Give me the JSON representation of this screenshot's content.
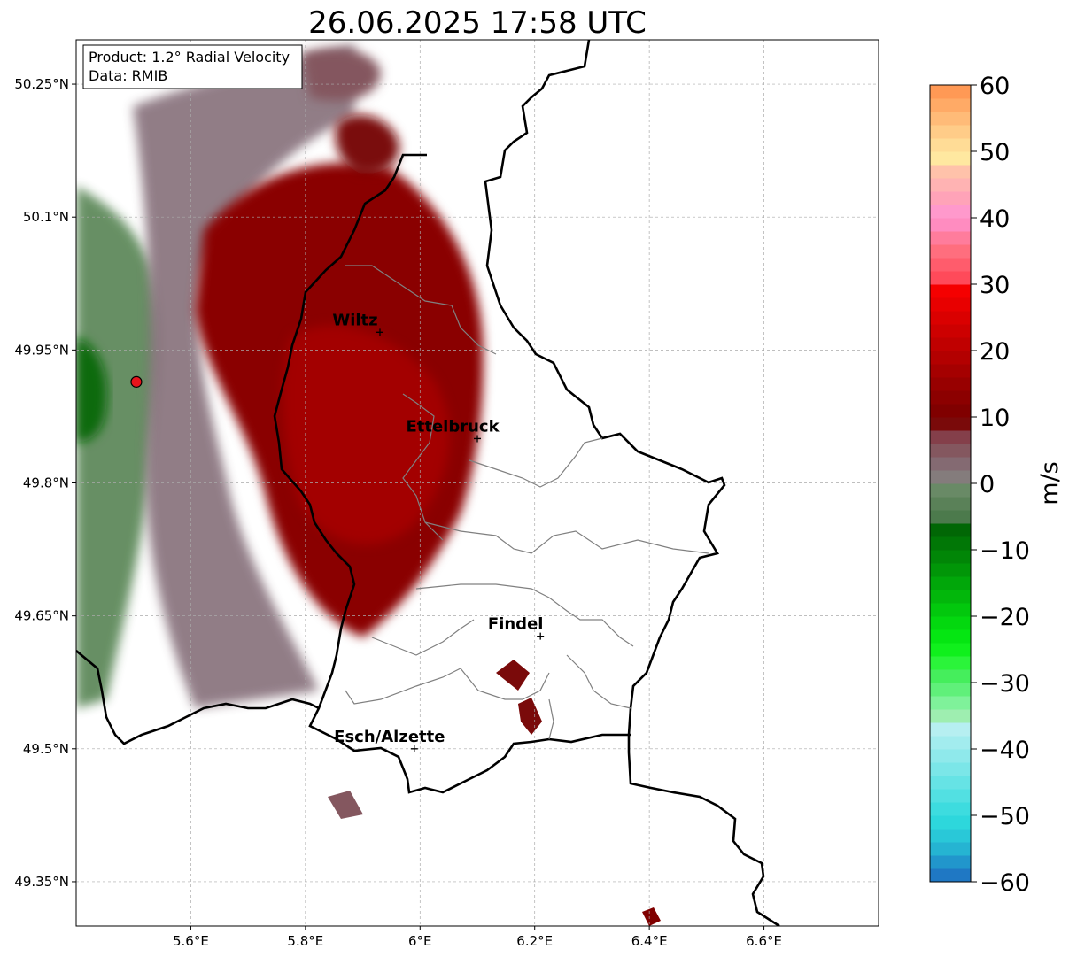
{
  "title": "26.06.2025 17:58 UTC",
  "info_box": {
    "product": "Product: 1.2° Radial Velocity",
    "data": "Data: RMIB"
  },
  "map": {
    "lon_range": [
      5.4,
      6.8
    ],
    "lat_range": [
      49.3,
      50.3
    ],
    "x_ticks": [
      {
        "value": 5.6,
        "label": "5.6°E"
      },
      {
        "value": 5.8,
        "label": "5.8°E"
      },
      {
        "value": 6.0,
        "label": "6°E"
      },
      {
        "value": 6.2,
        "label": "6.2°E"
      },
      {
        "value": 6.4,
        "label": "6.4°E"
      },
      {
        "value": 6.6,
        "label": "6.6°E"
      }
    ],
    "y_ticks": [
      {
        "value": 50.25,
        "label": "50.25°N"
      },
      {
        "value": 50.1,
        "label": "50.1°N"
      },
      {
        "value": 49.95,
        "label": "49.95°N"
      },
      {
        "value": 49.8,
        "label": "49.8°N"
      },
      {
        "value": 49.65,
        "label": "49.65°N"
      },
      {
        "value": 49.5,
        "label": "49.5°N"
      },
      {
        "value": 49.35,
        "label": "49.35°N"
      }
    ],
    "grid": true,
    "radar_site": {
      "lon": 5.505,
      "lat": 49.914,
      "color": "#e8141c"
    },
    "cities": [
      {
        "name": "Wiltz",
        "lon": 5.93,
        "lat": 49.97
      },
      {
        "name": "Ettelbruck",
        "lon": 6.1,
        "lat": 49.85
      },
      {
        "name": "Findel",
        "lon": 6.21,
        "lat": 49.627
      },
      {
        "name": "Esch/Alzette",
        "lon": 5.99,
        "lat": 49.5
      }
    ]
  },
  "colorbar": {
    "label": "m/s",
    "range": [
      -60,
      60
    ],
    "ticks": [
      {
        "value": 60,
        "label": "60"
      },
      {
        "value": 50,
        "label": "50"
      },
      {
        "value": 40,
        "label": "40"
      },
      {
        "value": 30,
        "label": "30"
      },
      {
        "value": 20,
        "label": "20"
      },
      {
        "value": 10,
        "label": "10"
      },
      {
        "value": 0,
        "label": "0"
      },
      {
        "value": -10,
        "label": "−10"
      },
      {
        "value": -20,
        "label": "−20"
      },
      {
        "value": -30,
        "label": "−30"
      },
      {
        "value": -40,
        "label": "−40"
      },
      {
        "value": -50,
        "label": "−50"
      },
      {
        "value": -60,
        "label": "−60"
      }
    ],
    "bands": [
      {
        "from": -60,
        "to": -58,
        "color": "#1f78c4"
      },
      {
        "from": -58,
        "to": -56,
        "color": "#2196cc"
      },
      {
        "from": -56,
        "to": -54,
        "color": "#25b4d2"
      },
      {
        "from": -54,
        "to": -52,
        "color": "#29c8d8"
      },
      {
        "from": -52,
        "to": -50,
        "color": "#2dd7dc"
      },
      {
        "from": -50,
        "to": -48,
        "color": "#3ddcdf"
      },
      {
        "from": -48,
        "to": -46,
        "color": "#52e0e2"
      },
      {
        "from": -46,
        "to": -44,
        "color": "#66e3e5"
      },
      {
        "from": -44,
        "to": -42,
        "color": "#7be6e8"
      },
      {
        "from": -42,
        "to": -40,
        "color": "#8fe9eb"
      },
      {
        "from": -40,
        "to": -38,
        "color": "#a2ecee"
      },
      {
        "from": -38,
        "to": -36,
        "color": "#b6eff1"
      },
      {
        "from": -36,
        "to": -34,
        "color": "#9eeeb0"
      },
      {
        "from": -34,
        "to": -32,
        "color": "#7ff29a"
      },
      {
        "from": -32,
        "to": -30,
        "color": "#60f07a"
      },
      {
        "from": -30,
        "to": -28,
        "color": "#45ee5c"
      },
      {
        "from": -28,
        "to": -26,
        "color": "#2bf43a"
      },
      {
        "from": -26,
        "to": -24,
        "color": "#10f01c"
      },
      {
        "from": -24,
        "to": -22,
        "color": "#05e612"
      },
      {
        "from": -22,
        "to": -20,
        "color": "#03d80f"
      },
      {
        "from": -20,
        "to": -18,
        "color": "#02c80d"
      },
      {
        "from": -18,
        "to": -16,
        "color": "#02b70b"
      },
      {
        "from": -16,
        "to": -14,
        "color": "#01a70a"
      },
      {
        "from": -14,
        "to": -12,
        "color": "#019608"
      },
      {
        "from": -12,
        "to": -10,
        "color": "#018607"
      },
      {
        "from": -10,
        "to": -8,
        "color": "#017706"
      },
      {
        "from": -8,
        "to": -6,
        "color": "#016705"
      },
      {
        "from": -6,
        "to": -4,
        "color": "#4c7a4c"
      },
      {
        "from": -4,
        "to": -2,
        "color": "#5a8158"
      },
      {
        "from": -2,
        "to": 0,
        "color": "#698a66"
      },
      {
        "from": 0,
        "to": 2,
        "color": "#847c7c"
      },
      {
        "from": 2,
        "to": 4,
        "color": "#846a72"
      },
      {
        "from": 4,
        "to": 6,
        "color": "#84575f"
      },
      {
        "from": 6,
        "to": 8,
        "color": "#843f4a"
      },
      {
        "from": 8,
        "to": 10,
        "color": "#7a0a0a"
      },
      {
        "from": 10,
        "to": 12,
        "color": "#800000"
      },
      {
        "from": 12,
        "to": 14,
        "color": "#8c0000"
      },
      {
        "from": 14,
        "to": 16,
        "color": "#980000"
      },
      {
        "from": 16,
        "to": 18,
        "color": "#a50000"
      },
      {
        "from": 18,
        "to": 20,
        "color": "#b30000"
      },
      {
        "from": 20,
        "to": 22,
        "color": "#c00000"
      },
      {
        "from": 22,
        "to": 24,
        "color": "#cd0000"
      },
      {
        "from": 24,
        "to": 26,
        "color": "#da0000"
      },
      {
        "from": 26,
        "to": 28,
        "color": "#e80000"
      },
      {
        "from": 28,
        "to": 30,
        "color": "#f50000"
      },
      {
        "from": 30,
        "to": 32,
        "color": "#ff4a5a"
      },
      {
        "from": 32,
        "to": 34,
        "color": "#ff5c6c"
      },
      {
        "from": 34,
        "to": 36,
        "color": "#ff6e7e"
      },
      {
        "from": 36,
        "to": 38,
        "color": "#ff7c9c"
      },
      {
        "from": 38,
        "to": 40,
        "color": "#ff8cc0"
      },
      {
        "from": 40,
        "to": 42,
        "color": "#ff99cc"
      },
      {
        "from": 42,
        "to": 44,
        "color": "#ffa3b8"
      },
      {
        "from": 44,
        "to": 46,
        "color": "#ffb3b3"
      },
      {
        "from": 46,
        "to": 48,
        "color": "#ffc2aa"
      },
      {
        "from": 48,
        "to": 50,
        "color": "#ffe8a0"
      },
      {
        "from": 50,
        "to": 52,
        "color": "#ffdc96"
      },
      {
        "from": 52,
        "to": 54,
        "color": "#ffcc88"
      },
      {
        "from": 54,
        "to": 56,
        "color": "#ffbb78"
      },
      {
        "from": 56,
        "to": 58,
        "color": "#ffaa66"
      },
      {
        "from": 58,
        "to": 60,
        "color": "#ff9955"
      }
    ]
  }
}
